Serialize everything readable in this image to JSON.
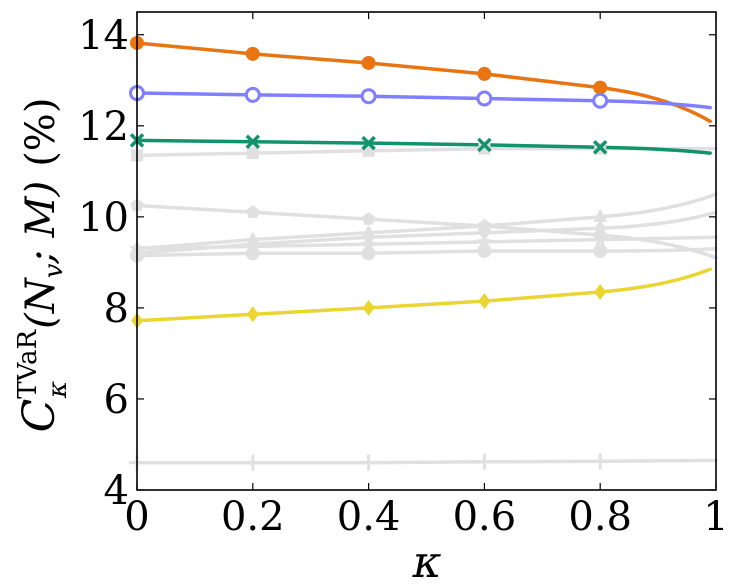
{
  "chart_data": {
    "type": "line",
    "xlabel": "κ",
    "ylabel": {
      "symbol": "C",
      "superscript": "TVaR",
      "subscript": "κ",
      "argument": "(N",
      "argument_sub": "v",
      "argument_rest": "; M)",
      "unit": "(%)"
    },
    "xlim": [
      0,
      1
    ],
    "ylim": [
      4,
      14.5
    ],
    "x_ticks": [
      0,
      0.2,
      0.4,
      0.6,
      0.8,
      1
    ],
    "x_tick_labels": [
      "0",
      "0.2",
      "0.4",
      "0.6",
      "0.8",
      "1"
    ],
    "y_ticks": [
      4,
      6,
      8,
      10,
      12,
      14
    ],
    "y_tick_labels": [
      "4",
      "6",
      "8",
      "10",
      "12",
      "14"
    ],
    "marker_x": [
      0,
      0.2,
      0.4,
      0.6,
      0.8
    ],
    "series": [
      {
        "name": "grey-square",
        "color": "#e0e0e0",
        "marker": "square",
        "highlight": false,
        "values": [
          11.35,
          11.4,
          11.45,
          11.5,
          11.5
        ],
        "end": [
          1.0,
          11.5
        ]
      },
      {
        "name": "grey-pentagon",
        "color": "#e0e0e0",
        "marker": "pentagon",
        "highlight": false,
        "values": [
          10.25,
          10.1,
          9.95,
          9.8,
          9.6
        ],
        "end": [
          1.0,
          9.1
        ]
      },
      {
        "name": "grey-triangle",
        "color": "#e0e0e0",
        "marker": "triangle",
        "highlight": false,
        "values": [
          9.3,
          9.5,
          9.65,
          9.8,
          10.0
        ],
        "end": [
          1.0,
          10.5
        ]
      },
      {
        "name": "grey-diamond",
        "color": "#e0e0e0",
        "marker": "diamond",
        "highlight": false,
        "values": [
          9.2,
          9.4,
          9.55,
          9.65,
          9.75
        ],
        "end": [
          1.0,
          10.1
        ]
      },
      {
        "name": "grey-star",
        "color": "#e0e0e0",
        "marker": "star",
        "highlight": false,
        "values": [
          9.3,
          9.35,
          9.4,
          9.45,
          9.5
        ],
        "end": [
          1.0,
          9.55
        ]
      },
      {
        "name": "grey-circle",
        "color": "#e0e0e0",
        "marker": "circle",
        "highlight": false,
        "values": [
          9.15,
          9.2,
          9.2,
          9.25,
          9.25
        ],
        "end": [
          1.0,
          9.3
        ]
      },
      {
        "name": "grey-plus",
        "color": "#e0e0e0",
        "marker": "plus",
        "highlight": false,
        "values": [
          4.6,
          4.6,
          4.6,
          4.62,
          4.63
        ],
        "end": [
          1.0,
          4.65
        ]
      },
      {
        "name": "orange-filled-circle",
        "color": "#e87511",
        "marker": "circle",
        "highlight": true,
        "values": [
          13.82,
          13.58,
          13.38,
          13.14,
          12.84
        ],
        "end": [
          0.99,
          12.1
        ]
      },
      {
        "name": "blue-open-circle",
        "color": "#7f7fff",
        "marker": "circle-open",
        "highlight": true,
        "values": [
          12.72,
          12.68,
          12.65,
          12.6,
          12.55
        ],
        "end": [
          0.99,
          12.4
        ]
      },
      {
        "name": "green-cross",
        "color": "#12936b",
        "marker": "cross",
        "highlight": true,
        "values": [
          11.68,
          11.65,
          11.62,
          11.58,
          11.53
        ],
        "end": [
          0.99,
          11.4
        ]
      },
      {
        "name": "yellow-diamond",
        "color": "#ebd532",
        "marker": "diamond",
        "highlight": true,
        "values": [
          7.72,
          7.86,
          8.0,
          8.15,
          8.35
        ],
        "end": [
          0.99,
          8.85
        ]
      }
    ]
  }
}
